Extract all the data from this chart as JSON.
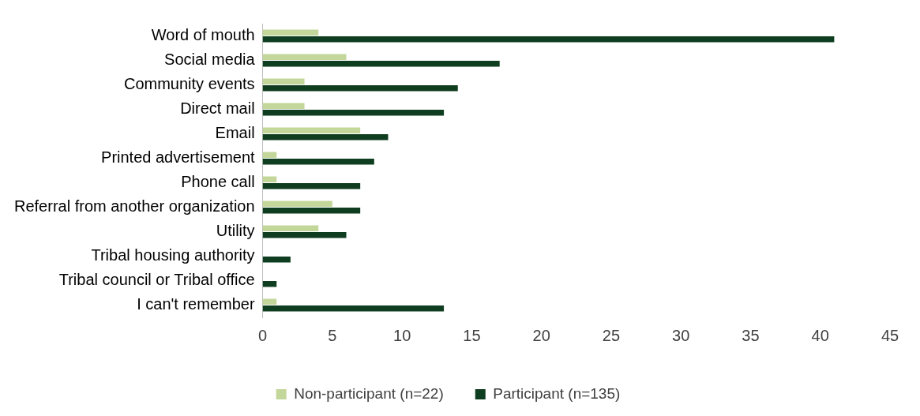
{
  "chart_data": {
    "type": "bar",
    "orientation": "horizontal",
    "categories": [
      "Word of mouth",
      "Social media",
      "Community events",
      "Direct mail",
      "Email",
      "Printed advertisement",
      "Phone call",
      "Referral from another organization",
      "Utility",
      "Tribal housing authority",
      "Tribal council or Tribal office",
      "I can't remember"
    ],
    "series": [
      {
        "name": "Non-participant (n=22)",
        "color": "#c4d79b",
        "values": [
          4,
          6,
          3,
          3,
          7,
          1,
          1,
          5,
          4,
          0,
          0,
          1
        ]
      },
      {
        "name": "Participant (n=135)",
        "color": "#0f3d1f",
        "values": [
          41,
          17,
          14,
          13,
          9,
          8,
          7,
          7,
          6,
          2,
          1,
          13
        ]
      }
    ],
    "xlim": [
      0,
      45
    ],
    "xticks": [
      0,
      5,
      10,
      15,
      20,
      25,
      30,
      35,
      40,
      45
    ],
    "grid": false,
    "legend": "bottom"
  }
}
